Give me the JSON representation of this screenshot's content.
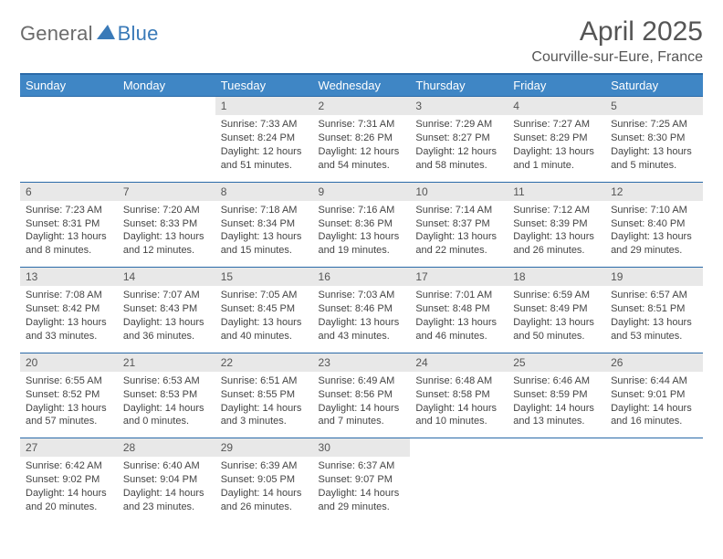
{
  "logo": {
    "text1": "General",
    "text2": "Blue"
  },
  "title": "April 2025",
  "location": "Courville-sur-Eure, France",
  "colors": {
    "header_bg": "#3f86c5",
    "header_text": "#ffffff",
    "border": "#2a6aa8",
    "daynum_bg": "#e8e8e8",
    "logo_gray": "#6b6b6b",
    "logo_blue": "#3a7ab8"
  },
  "weekdays": [
    "Sunday",
    "Monday",
    "Tuesday",
    "Wednesday",
    "Thursday",
    "Friday",
    "Saturday"
  ],
  "weeks": [
    [
      null,
      null,
      {
        "n": "1",
        "sr": "Sunrise: 7:33 AM",
        "ss": "Sunset: 8:24 PM",
        "dl": "Daylight: 12 hours and 51 minutes."
      },
      {
        "n": "2",
        "sr": "Sunrise: 7:31 AM",
        "ss": "Sunset: 8:26 PM",
        "dl": "Daylight: 12 hours and 54 minutes."
      },
      {
        "n": "3",
        "sr": "Sunrise: 7:29 AM",
        "ss": "Sunset: 8:27 PM",
        "dl": "Daylight: 12 hours and 58 minutes."
      },
      {
        "n": "4",
        "sr": "Sunrise: 7:27 AM",
        "ss": "Sunset: 8:29 PM",
        "dl": "Daylight: 13 hours and 1 minute."
      },
      {
        "n": "5",
        "sr": "Sunrise: 7:25 AM",
        "ss": "Sunset: 8:30 PM",
        "dl": "Daylight: 13 hours and 5 minutes."
      }
    ],
    [
      {
        "n": "6",
        "sr": "Sunrise: 7:23 AM",
        "ss": "Sunset: 8:31 PM",
        "dl": "Daylight: 13 hours and 8 minutes."
      },
      {
        "n": "7",
        "sr": "Sunrise: 7:20 AM",
        "ss": "Sunset: 8:33 PM",
        "dl": "Daylight: 13 hours and 12 minutes."
      },
      {
        "n": "8",
        "sr": "Sunrise: 7:18 AM",
        "ss": "Sunset: 8:34 PM",
        "dl": "Daylight: 13 hours and 15 minutes."
      },
      {
        "n": "9",
        "sr": "Sunrise: 7:16 AM",
        "ss": "Sunset: 8:36 PM",
        "dl": "Daylight: 13 hours and 19 minutes."
      },
      {
        "n": "10",
        "sr": "Sunrise: 7:14 AM",
        "ss": "Sunset: 8:37 PM",
        "dl": "Daylight: 13 hours and 22 minutes."
      },
      {
        "n": "11",
        "sr": "Sunrise: 7:12 AM",
        "ss": "Sunset: 8:39 PM",
        "dl": "Daylight: 13 hours and 26 minutes."
      },
      {
        "n": "12",
        "sr": "Sunrise: 7:10 AM",
        "ss": "Sunset: 8:40 PM",
        "dl": "Daylight: 13 hours and 29 minutes."
      }
    ],
    [
      {
        "n": "13",
        "sr": "Sunrise: 7:08 AM",
        "ss": "Sunset: 8:42 PM",
        "dl": "Daylight: 13 hours and 33 minutes."
      },
      {
        "n": "14",
        "sr": "Sunrise: 7:07 AM",
        "ss": "Sunset: 8:43 PM",
        "dl": "Daylight: 13 hours and 36 minutes."
      },
      {
        "n": "15",
        "sr": "Sunrise: 7:05 AM",
        "ss": "Sunset: 8:45 PM",
        "dl": "Daylight: 13 hours and 40 minutes."
      },
      {
        "n": "16",
        "sr": "Sunrise: 7:03 AM",
        "ss": "Sunset: 8:46 PM",
        "dl": "Daylight: 13 hours and 43 minutes."
      },
      {
        "n": "17",
        "sr": "Sunrise: 7:01 AM",
        "ss": "Sunset: 8:48 PM",
        "dl": "Daylight: 13 hours and 46 minutes."
      },
      {
        "n": "18",
        "sr": "Sunrise: 6:59 AM",
        "ss": "Sunset: 8:49 PM",
        "dl": "Daylight: 13 hours and 50 minutes."
      },
      {
        "n": "19",
        "sr": "Sunrise: 6:57 AM",
        "ss": "Sunset: 8:51 PM",
        "dl": "Daylight: 13 hours and 53 minutes."
      }
    ],
    [
      {
        "n": "20",
        "sr": "Sunrise: 6:55 AM",
        "ss": "Sunset: 8:52 PM",
        "dl": "Daylight: 13 hours and 57 minutes."
      },
      {
        "n": "21",
        "sr": "Sunrise: 6:53 AM",
        "ss": "Sunset: 8:53 PM",
        "dl": "Daylight: 14 hours and 0 minutes."
      },
      {
        "n": "22",
        "sr": "Sunrise: 6:51 AM",
        "ss": "Sunset: 8:55 PM",
        "dl": "Daylight: 14 hours and 3 minutes."
      },
      {
        "n": "23",
        "sr": "Sunrise: 6:49 AM",
        "ss": "Sunset: 8:56 PM",
        "dl": "Daylight: 14 hours and 7 minutes."
      },
      {
        "n": "24",
        "sr": "Sunrise: 6:48 AM",
        "ss": "Sunset: 8:58 PM",
        "dl": "Daylight: 14 hours and 10 minutes."
      },
      {
        "n": "25",
        "sr": "Sunrise: 6:46 AM",
        "ss": "Sunset: 8:59 PM",
        "dl": "Daylight: 14 hours and 13 minutes."
      },
      {
        "n": "26",
        "sr": "Sunrise: 6:44 AM",
        "ss": "Sunset: 9:01 PM",
        "dl": "Daylight: 14 hours and 16 minutes."
      }
    ],
    [
      {
        "n": "27",
        "sr": "Sunrise: 6:42 AM",
        "ss": "Sunset: 9:02 PM",
        "dl": "Daylight: 14 hours and 20 minutes."
      },
      {
        "n": "28",
        "sr": "Sunrise: 6:40 AM",
        "ss": "Sunset: 9:04 PM",
        "dl": "Daylight: 14 hours and 23 minutes."
      },
      {
        "n": "29",
        "sr": "Sunrise: 6:39 AM",
        "ss": "Sunset: 9:05 PM",
        "dl": "Daylight: 14 hours and 26 minutes."
      },
      {
        "n": "30",
        "sr": "Sunrise: 6:37 AM",
        "ss": "Sunset: 9:07 PM",
        "dl": "Daylight: 14 hours and 29 minutes."
      },
      null,
      null,
      null
    ]
  ]
}
